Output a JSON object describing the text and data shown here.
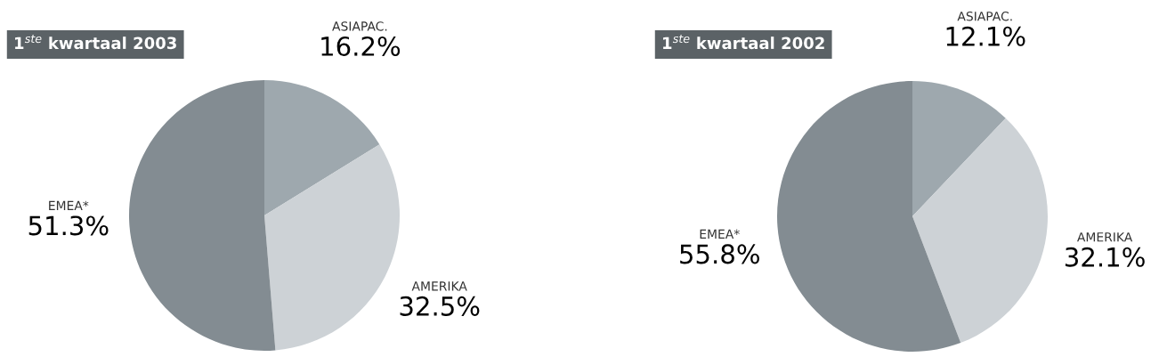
{
  "chart_data": [
    {
      "type": "pie",
      "title": "1$^{ste}$ kwartaal 2003",
      "categories": [
        "ASIAPAC.",
        "AMERIKA",
        "EMEA*"
      ],
      "values": [
        16.2,
        32.5,
        51.3
      ],
      "value_labels": [
        "16.2%",
        "32.5%",
        "51.3%"
      ],
      "colors": [
        "#9ea8ae",
        "#cdd2d6",
        "#838c92"
      ]
    },
    {
      "type": "pie",
      "title": "1$^{ste}$ kwartaal 2002",
      "categories": [
        "ASIAPAC.",
        "AMERIKA",
        "EMEA*"
      ],
      "values": [
        12.1,
        32.1,
        55.8
      ],
      "value_labels": [
        "12.1%",
        "32.1%",
        "55.8%"
      ],
      "colors": [
        "#9ea8ae",
        "#cdd2d6",
        "#838c92"
      ]
    }
  ]
}
